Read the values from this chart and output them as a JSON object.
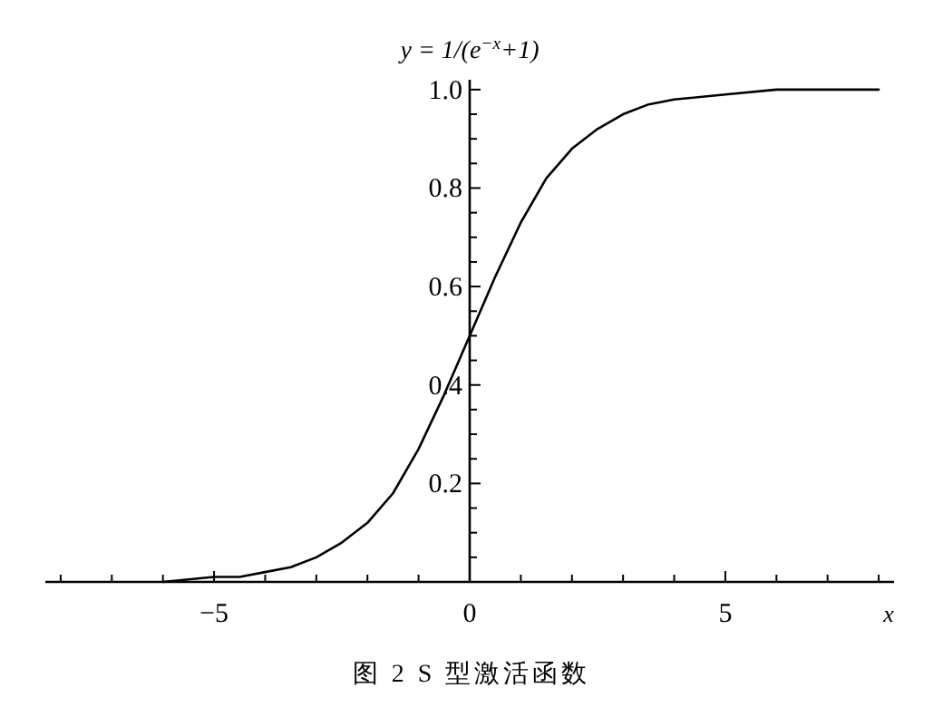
{
  "chart_data": {
    "type": "line",
    "ylabel": "y = 1/(e$^{−x}$+1)",
    "xlabel": "x",
    "annotations": [
      "图 2  S 型激活函数"
    ],
    "xlim": [
      -8.3,
      8.3
    ],
    "ylim": [
      0,
      1.02
    ],
    "xticks": [
      {
        "value": -8,
        "label": null
      },
      {
        "value": -7,
        "label": null
      },
      {
        "value": -6,
        "label": null
      },
      {
        "value": -5,
        "label": "−5"
      },
      {
        "value": -4,
        "label": null
      },
      {
        "value": -3,
        "label": null
      },
      {
        "value": -2,
        "label": null
      },
      {
        "value": -1,
        "label": null
      },
      0,
      {
        "value": 1,
        "label": null
      },
      {
        "value": 2,
        "label": null
      },
      {
        "value": 3,
        "label": null
      },
      {
        "value": 4,
        "label": null
      },
      5,
      {
        "value": 6,
        "label": null
      },
      {
        "value": 7,
        "label": null
      },
      {
        "value": 8,
        "label": null
      }
    ],
    "yticks": [
      {
        "value": 0.05,
        "label": null
      },
      {
        "value": 0.1,
        "label": null
      },
      {
        "value": 0.15,
        "label": null
      },
      0.2,
      {
        "value": 0.25,
        "label": null
      },
      {
        "value": 0.3,
        "label": null
      },
      {
        "value": 0.35,
        "label": null
      },
      0.4,
      {
        "value": 0.45,
        "label": null
      },
      {
        "value": 0.5,
        "label": null
      },
      {
        "value": 0.55,
        "label": null
      },
      0.6,
      {
        "value": 0.65,
        "label": null
      },
      {
        "value": 0.7,
        "label": null
      },
      {
        "value": 0.75,
        "label": null
      },
      0.8,
      {
        "value": 0.85,
        "label": null
      },
      {
        "value": 0.9,
        "label": null
      },
      {
        "value": 0.95,
        "label": null
      },
      {
        "value": 1,
        "label": "1.0"
      }
    ],
    "grid": false,
    "marker": "none",
    "line_style": "solid",
    "series": [
      {
        "color": "#000000",
        "x": [
          -6,
          -5,
          -4.5,
          -4,
          -3.5,
          -3,
          -2.5,
          -2,
          -1.5,
          -1,
          -0.5,
          0,
          0.5,
          1,
          1.5,
          2,
          2.5,
          3,
          3.5,
          4,
          5,
          6,
          7,
          8
        ],
        "values": [
          0.0,
          0.01,
          0.01,
          0.02,
          0.03,
          0.05,
          0.08,
          0.12,
          0.18,
          0.27,
          0.38,
          0.5,
          0.62,
          0.73,
          0.82,
          0.88,
          0.92,
          0.95,
          0.97,
          0.98,
          0.99,
          1.0,
          1.0,
          1.0
        ]
      }
    ]
  }
}
